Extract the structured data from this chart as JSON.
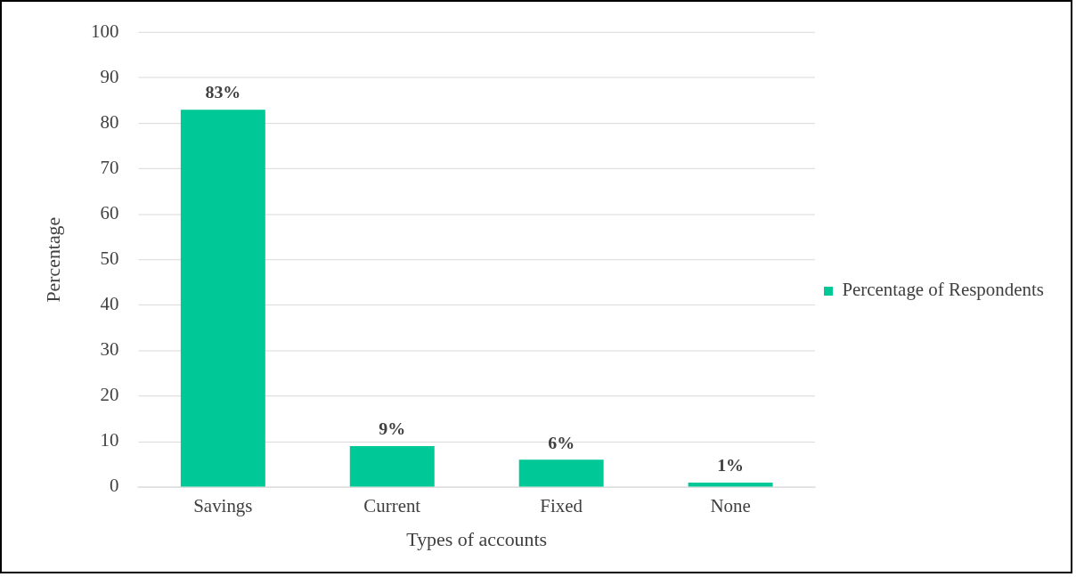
{
  "chart_data": {
    "type": "bar",
    "xlabel": "Types of accounts",
    "ylabel": "Percentage",
    "categories": [
      "Savings",
      "Current",
      "Fixed",
      "None"
    ],
    "series": [
      {
        "name": "Percentage of Respondents",
        "color": "#00c896",
        "values": [
          83,
          9,
          6,
          1
        ],
        "value_labels": [
          "83%",
          "9%",
          "6%",
          "1%"
        ]
      }
    ],
    "ylim": [
      0,
      100
    ],
    "yticks": [
      0,
      10,
      20,
      30,
      40,
      50,
      60,
      70,
      80,
      90,
      100
    ],
    "grid": "y",
    "legend": "right"
  }
}
